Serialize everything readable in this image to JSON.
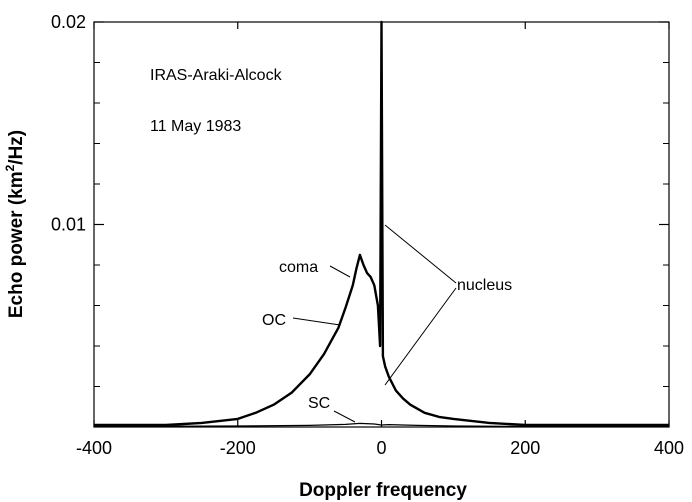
{
  "chart_data": {
    "type": "line",
    "xlabel": "Doppler frequency",
    "ylabel_main": "Echo power (km",
    "ylabel_sup": "2",
    "ylabel_tail": "/Hz)",
    "xlim": [
      -400,
      400
    ],
    "ylim": [
      0,
      0.02
    ],
    "x_ticks": [
      -400,
      -200,
      0,
      200,
      400
    ],
    "x_tick_labels": [
      "-400",
      "-200",
      "0",
      "200",
      "400"
    ],
    "y_tick_labels": [
      {
        "value": 0.01,
        "label": "0.01"
      },
      {
        "value": 0.02,
        "label": "0.02"
      }
    ],
    "annotations": {
      "object": "IRAS-Araki-Alcock",
      "date": "11 May 1983",
      "coma": "coma",
      "oc": "OC",
      "sc": "SC",
      "nucleus": "nucleus"
    },
    "series": [
      {
        "key": "oc",
        "x": [
          -400,
          -300,
          -250,
          -200,
          -175,
          -150,
          -125,
          -100,
          -80,
          -60,
          -50,
          -40,
          -35,
          -30,
          -25,
          -20,
          -15,
          -10,
          -5,
          -2,
          0,
          2,
          5,
          10,
          20,
          30,
          40,
          60,
          80,
          100,
          150,
          200,
          300,
          400
        ],
        "y": [
          0.0001,
          0.0001,
          0.0002,
          0.0004,
          0.0007,
          0.0011,
          0.0017,
          0.0026,
          0.0036,
          0.0049,
          0.0059,
          0.007,
          0.0078,
          0.0085,
          0.008,
          0.0076,
          0.0074,
          0.007,
          0.006,
          0.004,
          0.02,
          0.0035,
          0.003,
          0.0025,
          0.0018,
          0.0014,
          0.0011,
          0.0007,
          0.0005,
          0.0004,
          0.0002,
          0.0001,
          0.0001,
          0.0001
        ]
      },
      {
        "key": "sc",
        "x": [
          -400,
          -200,
          -100,
          -50,
          -30,
          -10,
          0,
          10,
          30,
          50,
          100,
          200,
          400
        ],
        "y": [
          3e-05,
          5e-05,
          8e-05,
          0.00013,
          0.00018,
          0.00015,
          0.0001,
          0.00012,
          0.0001,
          8e-05,
          5e-05,
          3e-05,
          3e-05
        ]
      }
    ]
  }
}
